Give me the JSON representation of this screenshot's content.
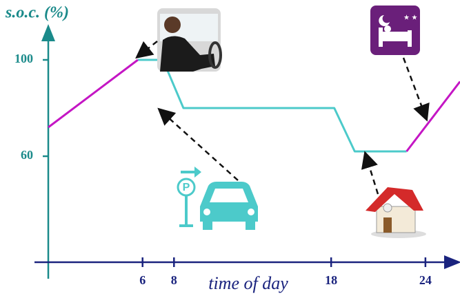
{
  "chart_data": {
    "type": "line",
    "y_label": "s.o.c. (%)",
    "x_label": "time of day",
    "x": [
      0,
      5.7,
      7.3,
      8.6,
      18.2,
      19.5,
      22.8,
      26.2
    ],
    "series": [
      {
        "color": "#c416c4",
        "values": [
          72,
          100,
          null,
          null,
          null,
          null,
          62,
          91
        ]
      },
      {
        "color": "#4ccaca",
        "values": [
          null,
          100,
          100,
          80,
          80,
          62,
          62,
          null
        ]
      }
    ],
    "xlim": [
      0,
      26.2
    ],
    "xticks": [
      6,
      8,
      18,
      24
    ],
    "ylim": [
      16,
      112
    ],
    "yticks": [
      60,
      100
    ]
  }
}
